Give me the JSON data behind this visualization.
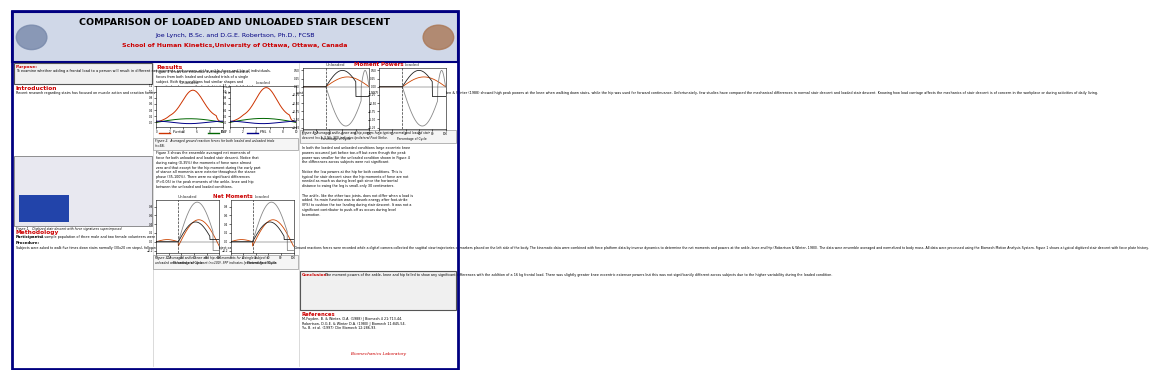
{
  "title": "COMPARISON OF LOADED AND UNLOADED STAIR DESCENT",
  "authors": "Joe Lynch, B.Sc. and D.G.E. Robertson, Ph.D., FCSB",
  "affiliation": "School of Human Kinetics,University of Ottawa, Ottawa, Canada",
  "title_color": "#000000",
  "authors_color": "#000080",
  "affiliation_color": "#cc0000",
  "header_bg": "#d0d8e8",
  "purpose_title": "Purpose:",
  "purpose_text": "To examine whether adding a frontal load to a person will result in different net moments and powers at the ankle, knee and hip of individuals.",
  "intro_title": "Introduction",
  "intro_text": "Recent research regarding stairs has focused on muscle action and reaction forces while moving down stairs. For example, it is known that higher loads on the knee exist while descending the stairs (Yu et al., 1997) as compared with level walking. M-Fayden & Winter (1988) showed high peak powers at the knee when walking down stairs, while the hip was used for forward continuance. Unfortunately, few studies have compared the mechanical differences in normal stair descent and loaded stair descent. Knowing how load carriage affects the mechanics of stair descent is of concern in the workplace or during activities of daily living.",
  "method_title": "Methodology",
  "participants_title": "Participants:",
  "participants_text": "A sample population of three male and two female volunteers were used for this study.",
  "procedure_title": "Procedure:",
  "procedure_text": "Subjects were asked to walk five times down stairs normally (30x20 cm steps), followed by five stair descent trials with the subject carrying a 16 kg load in the frontal plane. Ground reactions forces were recorded while a digital camera collected the sagittal view trajectories of markers placed on the left side of the body. The kinematic data were combined with force platform data by inverse dynamics to determine the net moments and powers at the ankle, knee and hip (Robertson & Winter, 1980). The data were ensemble averaged and normalized to body mass. All data were processed using the Biomech Motion Analysis System. Figure 1 shows a typical digitized stair descent with force plate history.",
  "results_title": "Results",
  "results_text1": "Figure 2 shows the ensemble averaged ground reaction\nforces from both loaded and unloaded trials of a single\nsubject. Both the conditions had similar shapes and\nmagnitudes, however, the loaded trials had a slightly higher\nvertical force due to the added load.",
  "fig2_caption": "Figure 2.  Averaged ground reaction forces for both loaded and unloaded trials\n(n=58).",
  "results_text2": "Figure 3 shows the ensemble averaged net moments of\nforce for both unloaded and loaded stair descent. Notice that\nduring swing (0-35%) the moments of force were almost\nzero and that except for the hip moment during the early part\nof stance all moments were exterior throughout the stance\nphase (35-100%). There were no significant differences\n(P>0.05) in the peak moments of the ankle, knee and hip\nbetween the unloaded and loaded conditions.",
  "fig3_caption": "Figure 3. Averaged ankle, knee and hip net moments for a single subject's\nunloaded and loaded stair descent (n=100). SFP indicates Ipsilateral Foot Strike.",
  "results_text3": "In both the loaded and unloaded conditions large eccentric knee\npowers occurred just before toe-off but even though the peak\npower was smaller for the unloaded condition shown in Figure 4\nthe differences across subjects were not significant.\n\nNotice the low powers at the hip for both conditions. This is\ntypical for stair descent since the hip moments of force are not\nneeded as much as during level gait since the horizontal\ndistance to swing the leg is small-only 30 centimeters.\n\nThe ankle, like the other two joints, does not differ when a load is\nadded. Its main function was to absorb energy after foot-strike\n(IFS) to cushion the toe landing during stair descent. It was not a\nsignificant contributor to push-off as occurs during level\nlocomotion.",
  "conclusion_title": "Conclusion:",
  "conclusion_text": "The moment powers of the ankle, knee and hip failed to show any significant differences with the addition of a 16 kg frontal load. There was slightly greater knee eccentric extensor powers but this was not significantly different across subjects due to the higher variability during the loaded condition.",
  "references_title": "References",
  "ref1": "M-Fayden, B. & Winter, D.A. (1988) J Biomech 4 21:713-44.",
  "ref2": "Robertson, D.G.E. & Winter D.A. (1980) J Biomech 11:845-54.",
  "ref3": "Yu, B. et al. (1997) Clin Biomech 12:286-93.",
  "bg_color": "#ffffff",
  "border_color": "#000080",
  "section_title_color": "#cc0000",
  "body_text_color": "#000000",
  "fig2_unloaded_label": "Unloaded",
  "fig2_loaded_label": "Loaded",
  "fig3_unloaded_label": "Unloaded",
  "fig3_loaded_label": "Loaded",
  "fig4_title": "Moment Powers",
  "fig4_unloaded_label": "Unloaded",
  "fig4_loaded_label": "Loaded",
  "net_moments_title": "Net Moments"
}
